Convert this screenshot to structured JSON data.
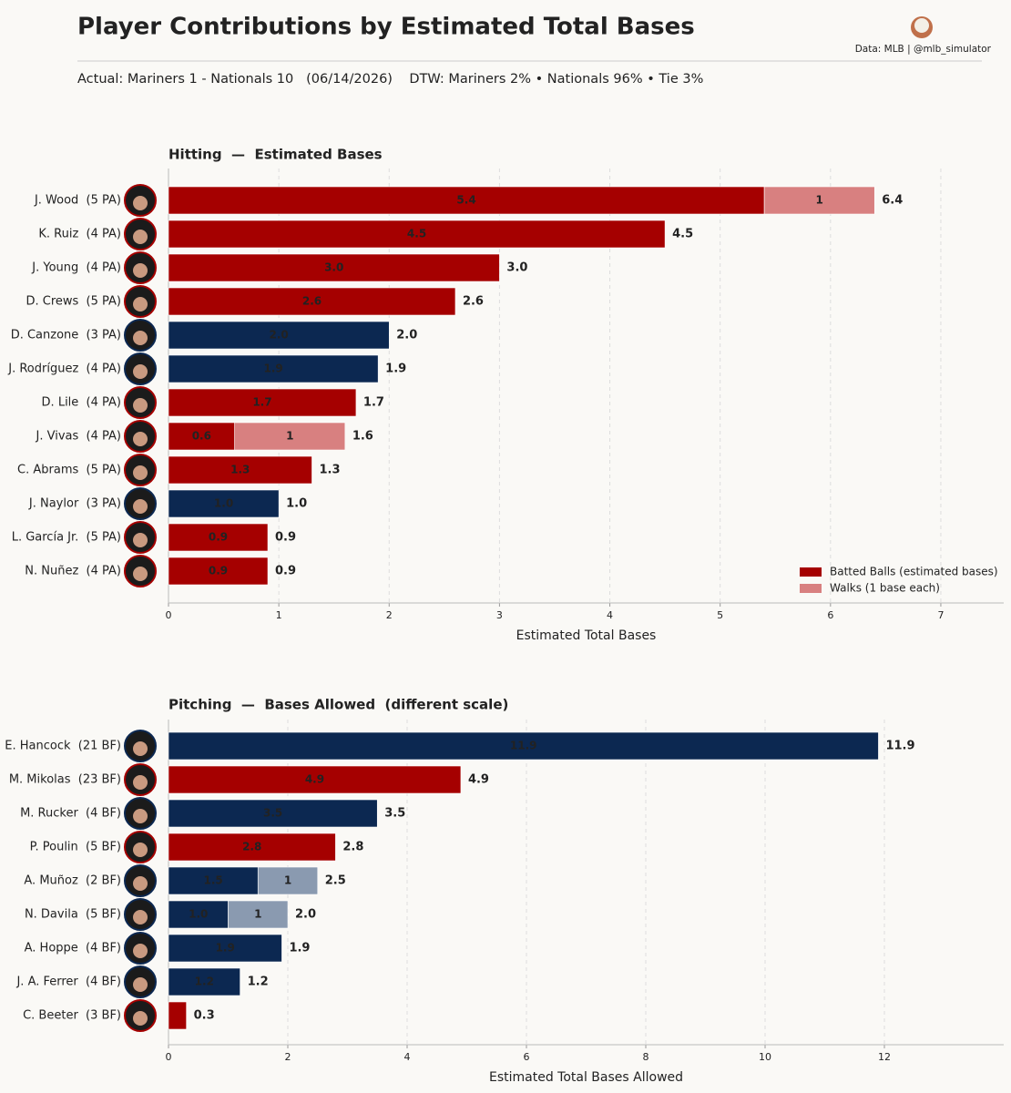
{
  "title": "Player Contributions by Estimated Total Bases",
  "source": "Data: MLB  |  @mlb_simulator",
  "subtitle": "Actual: Mariners 1 - Nationals 10   (06/14/2026)    DTW: Mariners 2% • Nationals 96% • Tie 3%",
  "chart_data": [
    {
      "type": "bar",
      "orientation": "horizontal",
      "stacked": true,
      "title": "Hitting  —  Estimated Bases",
      "xlabel": "Estimated Total Bases",
      "categories": [
        "J. Wood  (5 PA)",
        "K. Ruiz  (4 PA)",
        "J. Young  (4 PA)",
        "D. Crews  (5 PA)",
        "D. Canzone  (3 PA)",
        "J. Rodríguez  (4 PA)",
        "D. Lile  (4 PA)",
        "J. Vivas  (4 PA)",
        "C. Abrams  (5 PA)",
        "J. Naylor  (3 PA)",
        "L. García Jr.  (5 PA)",
        "N. Nuñez  (4 PA)"
      ],
      "series": [
        {
          "name": "Batted Balls (estimated bases)",
          "color": "#a50000",
          "values": [
            5.4,
            4.5,
            3.0,
            2.6,
            2.0,
            1.9,
            1.7,
            0.6,
            1.3,
            1.0,
            0.9,
            0.9
          ],
          "value_labels": [
            "5.4",
            "4.5",
            "3.0",
            "2.6",
            "2.0",
            "1.9",
            "1.7",
            "0.6",
            "1.3",
            "1.0",
            "0.9",
            "0.9"
          ],
          "colors": [
            "#a50000",
            "#a50000",
            "#a50000",
            "#a50000",
            "#0c2851",
            "#0c2851",
            "#a50000",
            "#a50000",
            "#a50000",
            "#0c2851",
            "#a50000",
            "#a50000"
          ]
        },
        {
          "name": "Walks (1 base each)",
          "color": "#d88080",
          "values": [
            1,
            null,
            null,
            null,
            null,
            null,
            null,
            1,
            null,
            null,
            null,
            null
          ],
          "colors": [
            "#d88080",
            null,
            null,
            null,
            null,
            null,
            null,
            "#d88080",
            null,
            null,
            null,
            null
          ]
        }
      ],
      "totals": [
        6.4,
        4.5,
        3.0,
        2.6,
        2.0,
        1.9,
        1.7,
        1.6,
        1.3,
        1.0,
        0.9,
        0.9
      ],
      "total_labels": [
        "6.4",
        "4.5",
        "3.0",
        "2.6",
        "2.0",
        "1.9",
        "1.7",
        "1.6",
        "1.3",
        "1.0",
        "0.9",
        "0.9"
      ],
      "xlim": [
        0,
        7.57
      ],
      "xticks": [
        0,
        1,
        2,
        3,
        4,
        5,
        6,
        7
      ],
      "grid": true,
      "legend": "lower right"
    },
    {
      "type": "bar",
      "orientation": "horizontal",
      "stacked": true,
      "title": "Pitching  —  Bases Allowed  (different scale)",
      "xlabel": "Estimated Total Bases Allowed",
      "categories": [
        "E. Hancock  (21 BF)",
        "M. Mikolas  (23 BF)",
        "M. Rucker  (4 BF)",
        "P. Poulin  (5 BF)",
        "A. Muñoz  (2 BF)",
        "N. Davila  (5 BF)",
        "A. Hoppe  (4 BF)",
        "J. A. Ferrer  (4 BF)",
        "C. Beeter  (3 BF)"
      ],
      "series": [
        {
          "values": [
            11.9,
            4.9,
            3.5,
            2.8,
            1.5,
            1.0,
            1.9,
            1.2,
            0.3
          ],
          "value_labels": [
            "11.9",
            "4.9",
            "3.5",
            "2.8",
            "1.5",
            "1.0",
            "1.9",
            "1.2",
            null
          ],
          "colors": [
            "#0c2851",
            "#a50000",
            "#0c2851",
            "#a50000",
            "#0c2851",
            "#0c2851",
            "#0c2851",
            "#0c2851",
            "#a50000"
          ]
        },
        {
          "values": [
            null,
            null,
            null,
            null,
            1,
            1,
            null,
            null,
            null
          ],
          "colors": [
            null,
            null,
            null,
            null,
            "#8a9ab0",
            "#8a9ab0",
            null,
            null,
            null
          ]
        }
      ],
      "totals": [
        11.9,
        4.9,
        3.5,
        2.8,
        2.5,
        2.0,
        1.9,
        1.2,
        0.3
      ],
      "total_labels": [
        "11.9",
        "4.9",
        "3.5",
        "2.8",
        "2.5",
        "2.0",
        "1.9",
        "1.2",
        "0.3"
      ],
      "xlim": [
        0,
        14
      ],
      "xticks": [
        0,
        2,
        4,
        6,
        8,
        10,
        12
      ],
      "grid": true
    }
  ]
}
